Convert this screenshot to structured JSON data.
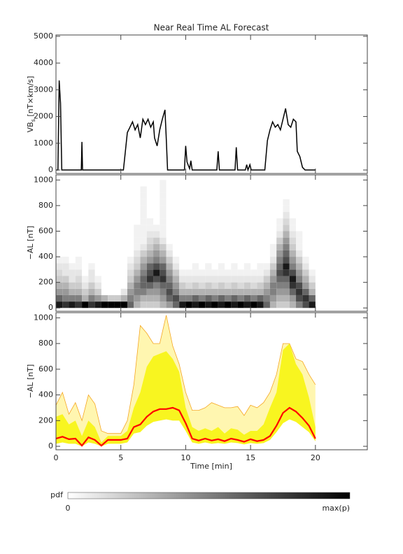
{
  "chart_data": [
    {
      "type": "line",
      "title": "Near Real Time AL Forecast",
      "ylabel_main": "VB",
      "ylabel_sub": "s",
      "ylabel_unit": " [nT×km/s]",
      "xlim": [
        0,
        24
      ],
      "xticks": [
        0,
        5,
        10,
        15,
        20
      ],
      "ylim": [
        -130,
        5050
      ],
      "yticks": [
        0,
        1000,
        2000,
        3000,
        4000,
        5000
      ],
      "color": "#000000",
      "x": [
        0,
        0.15,
        0.25,
        0.35,
        0.45,
        1.95,
        2.0,
        2.05,
        5.2,
        5.35,
        5.5,
        5.7,
        5.9,
        6.1,
        6.3,
        6.5,
        6.7,
        6.9,
        7.1,
        7.3,
        7.5,
        7.6,
        7.8,
        8.0,
        8.2,
        8.4,
        8.5,
        8.6,
        9.9,
        10.0,
        10.1,
        10.3,
        10.4,
        10.5,
        12.4,
        12.5,
        12.6,
        13.8,
        13.9,
        14.0,
        14.6,
        14.7,
        14.8,
        14.95,
        15.05,
        16.1,
        16.3,
        16.5,
        16.7,
        16.9,
        17.1,
        17.3,
        17.5,
        17.7,
        17.9,
        18.1,
        18.3,
        18.5,
        18.6,
        18.8,
        19.0,
        19.2,
        20.0
      ],
      "values": [
        0,
        0,
        3350,
        2500,
        0,
        0,
        1050,
        0,
        0,
        700,
        1400,
        1600,
        1800,
        1500,
        1700,
        1200,
        1900,
        1700,
        1900,
        1600,
        1800,
        1200,
        900,
        1500,
        1900,
        2250,
        1200,
        0,
        0,
        900,
        300,
        50,
        350,
        0,
        0,
        700,
        0,
        0,
        850,
        0,
        0,
        200,
        0,
        200,
        0,
        0,
        1100,
        1500,
        1800,
        1600,
        1700,
        1500,
        1900,
        2300,
        1700,
        1600,
        1900,
        1800,
        700,
        500,
        100,
        0,
        0
      ]
    },
    {
      "type": "heatmap",
      "ylabel": "−AL [nT]",
      "xlim": [
        0,
        24
      ],
      "xticks": [
        0,
        5,
        10,
        15,
        20
      ],
      "ylim": [
        -26,
        1040
      ],
      "yticks": [
        0,
        200,
        400,
        600,
        800,
        1000
      ],
      "bins": [
        0,
        0.5,
        1,
        1.5,
        2,
        2.5,
        3,
        3.5,
        4,
        4.5,
        5,
        5.5,
        6,
        6.5,
        7,
        7.5,
        8,
        8.5,
        9,
        9.5,
        10,
        10.5,
        11,
        11.5,
        12,
        12.5,
        13,
        13.5,
        14,
        14.5,
        15,
        15.5,
        16,
        16.5,
        17,
        17.5,
        18,
        18.5,
        19,
        19.5,
        20
      ],
      "y_bins": [
        0,
        50,
        100,
        150,
        200,
        250,
        300,
        350,
        400,
        450,
        500,
        550,
        600,
        650,
        700,
        750,
        800,
        850,
        900,
        950,
        1000
      ],
      "z": [
        [
          0.9,
          0.6,
          0.4,
          0.3,
          0.2,
          0.15,
          0.1,
          0.05
        ],
        [
          0.8,
          0.5,
          0.4,
          0.3,
          0.2,
          0.1,
          0.1,
          0.05
        ],
        [
          0.9,
          0.5,
          0.3,
          0.2,
          0.1,
          0.1,
          0.05
        ],
        [
          0.8,
          0.5,
          0.3,
          0.2,
          0.15,
          0.1,
          0.05,
          0.05
        ],
        [
          1,
          0.3,
          0.2,
          0.1,
          0.05
        ],
        [
          0.8,
          0.5,
          0.3,
          0.2,
          0.1,
          0.1,
          0.05
        ],
        [
          0.9,
          0.4,
          0.2,
          0.1,
          0.05
        ],
        [
          1,
          0.3
        ],
        [
          1,
          0.2
        ],
        [
          1,
          0.2
        ],
        [
          1,
          0.3,
          0.1
        ],
        [
          0.6,
          0.5,
          0.4,
          0.3,
          0.2,
          0.15,
          0.1,
          0.05
        ],
        [
          0.3,
          0.4,
          0.5,
          0.5,
          0.4,
          0.3,
          0.2,
          0.15,
          0.1,
          0.05,
          0.05,
          0.05,
          0.05
        ],
        [
          0.2,
          0.3,
          0.5,
          0.6,
          0.6,
          0.5,
          0.4,
          0.3,
          0.2,
          0.1,
          0.05,
          0.05,
          0.05,
          0.05,
          0.05,
          0.05,
          0.05,
          0.05,
          0.05
        ],
        [
          0.2,
          0.3,
          0.4,
          0.6,
          0.8,
          0.7,
          0.6,
          0.4,
          0.3,
          0.2,
          0.15,
          0.1,
          0.05,
          0.05
        ],
        [
          0.2,
          0.3,
          0.4,
          0.5,
          0.7,
          0.9,
          0.7,
          0.5,
          0.4,
          0.3,
          0.2,
          0.1,
          0.05
        ],
        [
          0.3,
          0.4,
          0.5,
          0.6,
          0.8,
          0.7,
          0.6,
          0.4,
          0.3,
          0.2,
          0.1,
          0.05,
          0.05,
          0.05,
          0.05,
          0.05,
          0.05,
          0.05,
          0.05,
          0.05
        ],
        [
          0.4,
          0.6,
          0.7,
          0.6,
          0.5,
          0.4,
          0.3,
          0.2,
          0.1,
          0.05
        ],
        [
          0.6,
          0.7,
          0.5,
          0.4,
          0.3,
          0.2,
          0.1,
          0.05
        ],
        [
          0.9,
          0.5,
          0.3,
          0.2,
          0.1,
          0.05
        ],
        [
          1,
          0.5,
          0.3,
          0.15,
          0.1,
          0.05
        ],
        [
          0.9,
          0.6,
          0.3,
          0.2,
          0.1,
          0.05,
          0.05
        ],
        [
          1,
          0.5,
          0.3,
          0.15,
          0.1,
          0.05
        ],
        [
          0.9,
          0.6,
          0.3,
          0.2,
          0.1,
          0.05,
          0.05
        ],
        [
          1,
          0.5,
          0.3,
          0.15,
          0.1,
          0.05
        ],
        [
          0.9,
          0.6,
          0.3,
          0.2,
          0.1,
          0.05,
          0.05
        ],
        [
          1,
          0.5,
          0.3,
          0.15,
          0.1,
          0.05
        ],
        [
          0.9,
          0.6,
          0.3,
          0.2,
          0.1,
          0.05,
          0.05
        ],
        [
          1,
          0.5,
          0.3,
          0.15,
          0.1,
          0.05
        ],
        [
          0.9,
          0.6,
          0.3,
          0.2,
          0.1,
          0.05,
          0.05
        ],
        [
          1,
          0.5,
          0.3,
          0.15,
          0.1,
          0.05
        ],
        [
          0.9,
          0.6,
          0.3,
          0.2,
          0.1,
          0.05,
          0.05
        ],
        [
          0.6,
          0.5,
          0.4,
          0.3,
          0.2,
          0.1,
          0.05
        ],
        [
          0.3,
          0.4,
          0.5,
          0.5,
          0.4,
          0.3,
          0.2,
          0.1,
          0.05,
          0.05
        ],
        [
          0.2,
          0.3,
          0.4,
          0.5,
          0.6,
          0.7,
          0.6,
          0.5,
          0.4,
          0.3,
          0.2,
          0.1,
          0.05,
          0.05
        ],
        [
          0.2,
          0.3,
          0.4,
          0.5,
          0.6,
          0.8,
          0.9,
          0.7,
          0.6,
          0.5,
          0.4,
          0.3,
          0.2,
          0.15,
          0.1,
          0.05,
          0.05
        ],
        [
          0.3,
          0.4,
          0.6,
          0.8,
          0.9,
          0.7,
          0.5,
          0.4,
          0.3,
          0.2,
          0.15,
          0.1,
          0.05,
          0.05
        ],
        [
          0.5,
          0.7,
          0.8,
          0.7,
          0.5,
          0.4,
          0.3,
          0.2,
          0.1,
          0.05,
          0.05,
          0.05
        ],
        [
          0.7,
          0.8,
          0.6,
          0.4,
          0.3,
          0.2,
          0.1,
          0.05
        ],
        [
          0.9,
          0.6,
          0.3,
          0.2,
          0.1,
          0.05
        ]
      ],
      "colorbar": {
        "label": "pdf",
        "min_label": "0",
        "max_label": "max(p)"
      }
    },
    {
      "type": "band",
      "ylabel": "−AL [nT]",
      "xlabel": "Time [min]",
      "xlim": [
        0,
        24
      ],
      "xticks": [
        0,
        5,
        10,
        15,
        20
      ],
      "ylim": [
        -27,
        1040
      ],
      "yticks": [
        0,
        200,
        400,
        600,
        800,
        1000
      ],
      "outer_color": "#fff6b0",
      "outer_edge_color": "#f5a623",
      "inner_color": "#f8f520",
      "median_color": "#ff0000",
      "x": [
        0,
        0.5,
        1,
        1.5,
        2,
        2.5,
        3,
        3.5,
        4,
        4.5,
        5,
        5.5,
        6,
        6.5,
        7,
        7.5,
        8,
        8.5,
        9,
        9.5,
        10,
        10.5,
        11,
        11.5,
        12,
        12.5,
        13,
        13.5,
        14,
        14.5,
        15,
        15.5,
        16,
        16.5,
        17,
        17.5,
        18,
        18.5,
        19,
        19.5,
        20
      ],
      "lower": [
        20,
        30,
        20,
        20,
        0,
        30,
        20,
        0,
        20,
        20,
        20,
        30,
        100,
        110,
        160,
        190,
        200,
        210,
        200,
        200,
        120,
        30,
        20,
        30,
        20,
        25,
        20,
        30,
        25,
        15,
        25,
        20,
        25,
        50,
        110,
        180,
        210,
        190,
        150,
        110,
        40
      ],
      "upper_outer": [
        320,
        420,
        250,
        340,
        200,
        400,
        330,
        120,
        100,
        100,
        100,
        200,
        480,
        940,
        880,
        800,
        800,
        1020,
        780,
        640,
        420,
        280,
        280,
        300,
        340,
        320,
        300,
        300,
        310,
        240,
        320,
        300,
        340,
        420,
        560,
        800,
        800,
        680,
        660,
        560,
        480
      ],
      "upper_inner": [
        230,
        250,
        170,
        200,
        80,
        200,
        150,
        30,
        80,
        80,
        80,
        120,
        300,
        420,
        620,
        700,
        720,
        740,
        680,
        580,
        300,
        150,
        120,
        140,
        120,
        150,
        100,
        140,
        130,
        90,
        120,
        120,
        170,
        300,
        420,
        750,
        800,
        640,
        560,
        380,
        150
      ],
      "median": [
        60,
        75,
        55,
        60,
        5,
        70,
        50,
        5,
        50,
        50,
        50,
        60,
        150,
        170,
        230,
        270,
        290,
        290,
        300,
        280,
        180,
        60,
        45,
        60,
        45,
        55,
        40,
        60,
        50,
        35,
        55,
        40,
        50,
        80,
        160,
        260,
        300,
        270,
        220,
        160,
        60
      ]
    }
  ]
}
